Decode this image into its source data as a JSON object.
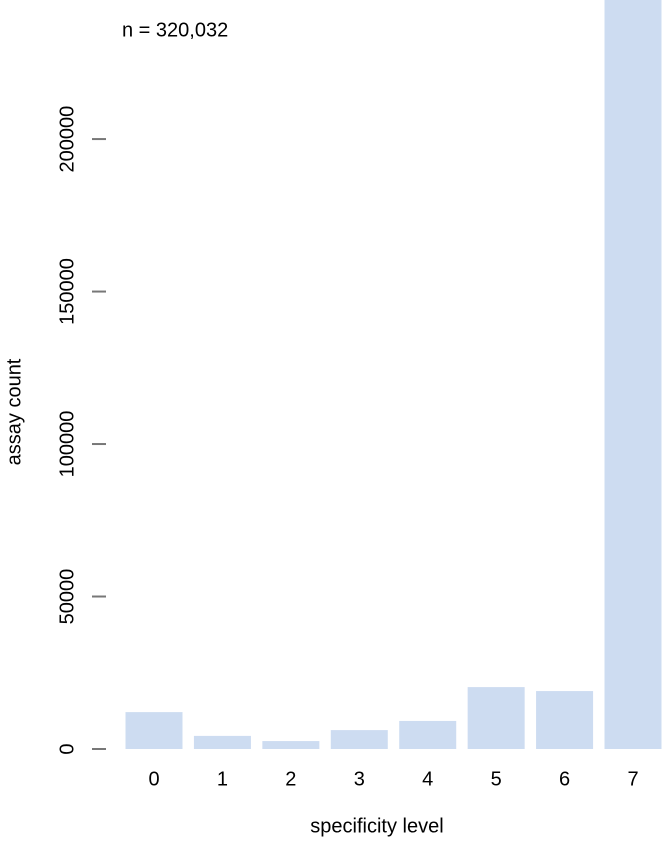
{
  "chart_data": {
    "type": "bar",
    "annotation": "n = 320,032",
    "x_label": "specificity level",
    "y_label": "assay count",
    "categories": [
      "0",
      "1",
      "2",
      "3",
      "4",
      "5",
      "6",
      "7"
    ],
    "values": [
      12100,
      4300,
      2600,
      6200,
      9200,
      20300,
      19000,
      246332
    ],
    "color": "#cddcf1",
    "ylim": [
      0,
      245600
    ],
    "yticks": [
      0,
      50000,
      100000,
      150000,
      200000
    ],
    "grid": false
  }
}
